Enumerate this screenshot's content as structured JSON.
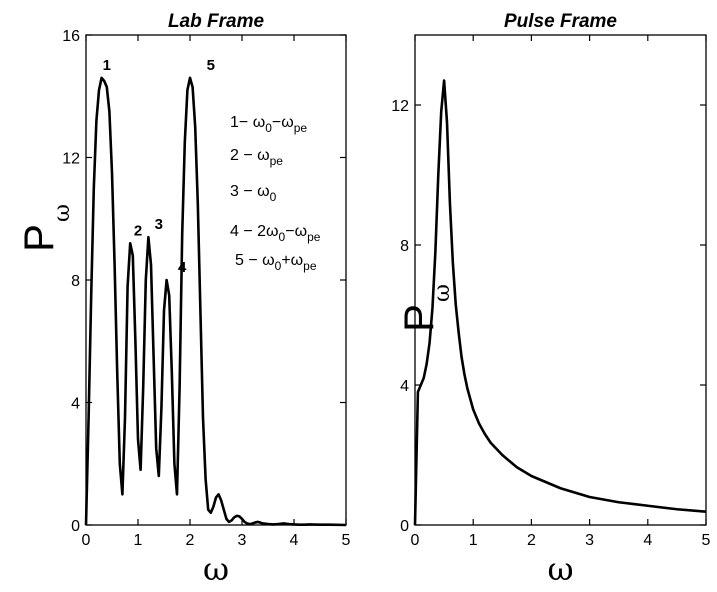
{
  "chart_data": [
    {
      "type": "line",
      "title": "Lab Frame",
      "xlabel": "ω",
      "ylabel": "P",
      "ylabel_sub": "ω",
      "xlim": [
        0,
        5
      ],
      "ylim": [
        0,
        16
      ],
      "xticks": [
        0,
        1,
        2,
        3,
        4,
        5
      ],
      "yticks": [
        0,
        4,
        8,
        12,
        16
      ],
      "grid": false,
      "x": [
        0,
        0.05,
        0.1,
        0.15,
        0.2,
        0.25,
        0.3,
        0.35,
        0.4,
        0.45,
        0.5,
        0.55,
        0.6,
        0.65,
        0.7,
        0.75,
        0.8,
        0.85,
        0.9,
        0.95,
        1.0,
        1.05,
        1.1,
        1.15,
        1.2,
        1.25,
        1.3,
        1.35,
        1.4,
        1.45,
        1.5,
        1.55,
        1.6,
        1.65,
        1.7,
        1.75,
        1.8,
        1.85,
        1.9,
        1.95,
        2.0,
        2.05,
        2.1,
        2.15,
        2.2,
        2.25,
        2.3,
        2.35,
        2.4,
        2.45,
        2.5,
        2.55,
        2.6,
        2.65,
        2.7,
        2.75,
        2.8,
        2.85,
        2.9,
        2.95,
        3.0,
        3.05,
        3.1,
        3.15,
        3.2,
        3.25,
        3.3,
        3.35,
        3.4,
        3.5,
        3.6,
        3.7,
        3.8,
        3.9,
        4.0,
        4.1,
        4.2,
        4.3,
        4.5,
        4.7,
        5.0
      ],
      "values": [
        0,
        3.5,
        7.5,
        11.0,
        13.2,
        14.2,
        14.6,
        14.5,
        14.3,
        13.5,
        11.5,
        8.5,
        5.0,
        2.0,
        1.0,
        3.5,
        7.8,
        9.2,
        8.8,
        6.0,
        2.8,
        1.8,
        4.5,
        8.0,
        9.4,
        8.5,
        5.5,
        2.5,
        1.6,
        3.8,
        7.0,
        8.0,
        7.5,
        5.0,
        2.0,
        1.0,
        4.5,
        9.5,
        12.5,
        14.2,
        14.6,
        14.3,
        13.0,
        10.5,
        7.0,
        3.5,
        1.5,
        0.5,
        0.4,
        0.6,
        0.9,
        1.0,
        0.8,
        0.5,
        0.2,
        0.1,
        0.15,
        0.25,
        0.3,
        0.28,
        0.2,
        0.1,
        0.05,
        0.03,
        0.05,
        0.08,
        0.1,
        0.08,
        0.05,
        0.03,
        0.02,
        0.03,
        0.05,
        0.03,
        0.02,
        0.01,
        0.01,
        0.02,
        0.01,
        0.01,
        0.0
      ],
      "peak_labels": [
        {
          "text": "1",
          "x": 0.4,
          "y": 14.6
        },
        {
          "text": "2",
          "x": 1.0,
          "y": 9.2
        },
        {
          "text": "3",
          "x": 1.4,
          "y": 9.4
        },
        {
          "text": "4",
          "x": 1.85,
          "y": 8.0
        },
        {
          "text": "5",
          "x": 2.4,
          "y": 14.6
        }
      ],
      "annotations": [
        {
          "parts": [
            [
              "1− ω",
              ""
            ],
            [
              "0",
              "sub"
            ],
            [
              "−ω",
              ""
            ],
            [
              "pe",
              "sub"
            ]
          ]
        },
        {
          "parts": [
            [
              "2 − ω",
              ""
            ],
            [
              "pe",
              "sub"
            ]
          ]
        },
        {
          "parts": [
            [
              "3 − ω",
              ""
            ],
            [
              "0",
              "sub"
            ]
          ]
        },
        {
          "parts": [
            [
              "4 − 2ω",
              ""
            ],
            [
              "0",
              "sub"
            ],
            [
              "−ω",
              ""
            ],
            [
              "pe",
              "sub"
            ]
          ]
        },
        {
          "parts": [
            [
              "5 − ω",
              ""
            ],
            [
              "0",
              "sub"
            ],
            [
              "+ω",
              ""
            ],
            [
              "pe",
              "sub"
            ]
          ]
        }
      ]
    },
    {
      "type": "line",
      "title": "Pulse Frame",
      "xlabel": "ω",
      "ylabel": "P",
      "ylabel_sub": "ω",
      "xlim": [
        0,
        5
      ],
      "ylim": [
        0,
        14
      ],
      "xticks": [
        0,
        1,
        2,
        3,
        4,
        5
      ],
      "yticks": [
        0,
        4,
        8,
        12
      ],
      "grid": false,
      "x": [
        0,
        0.05,
        0.1,
        0.15,
        0.2,
        0.25,
        0.3,
        0.35,
        0.4,
        0.45,
        0.5,
        0.55,
        0.6,
        0.65,
        0.7,
        0.75,
        0.8,
        0.85,
        0.9,
        1.0,
        1.1,
        1.2,
        1.3,
        1.5,
        1.75,
        2.0,
        2.5,
        3.0,
        3.5,
        4.0,
        4.5,
        5.0
      ],
      "values": [
        0,
        3.8,
        4.0,
        4.2,
        4.6,
        5.2,
        6.2,
        7.8,
        10.0,
        11.8,
        12.7,
        11.5,
        9.2,
        7.5,
        6.3,
        5.5,
        4.8,
        4.3,
        3.9,
        3.3,
        2.9,
        2.6,
        2.35,
        2.0,
        1.65,
        1.4,
        1.05,
        0.8,
        0.65,
        0.55,
        0.45,
        0.38
      ]
    }
  ]
}
